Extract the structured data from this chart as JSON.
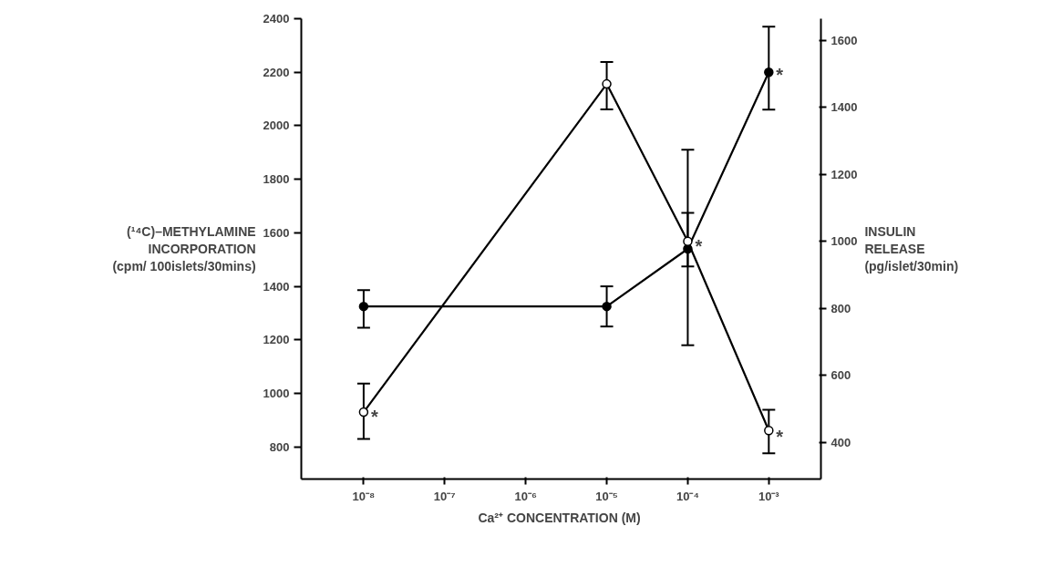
{
  "chart_data": {
    "type": "line",
    "xlabel": "Ca²⁺ CONCENTRATION  (M)",
    "ylabel": "(¹⁴C)–METHYLAMINE\nINCORPORATION\n(cpm/ 100islets/30mins)",
    "y2label": "INSULIN\nRELEASE\n(pg/islet/30min)",
    "x": [
      1e-08,
      1e-05,
      0.0001,
      0.001
    ],
    "log": "x",
    "series": [
      {
        "color": "#000000",
        "marker": "circle",
        "values": [
          1325,
          1325,
          1540,
          2200
        ],
        "errors": [
          [
            1245,
            1386
          ],
          [
            1250,
            1400
          ],
          [
            1180,
            1910
          ],
          [
            2060,
            2370
          ]
        ]
      },
      {
        "color": "#000000",
        "marker": "circle_open",
        "axis": "y2",
        "values": [
          490,
          1470,
          1000,
          435
        ],
        "errors": [
          [
            410,
            575
          ],
          [
            1394,
            1536
          ],
          [
            925,
            1085
          ],
          [
            367,
            497
          ]
        ]
      }
    ],
    "annotations": [
      {
        "text": "*",
        "x": 1e-08,
        "y": 925
      },
      {
        "text": "*",
        "x": 0.0001,
        "y": 1560
      },
      {
        "text": "*",
        "x": 0.001,
        "y": 2200
      },
      {
        "text": "*",
        "x": 0.001,
        "y": 850
      }
    ],
    "xlim": [
      1.7e-09,
      0.0044
    ],
    "xticks": [
      {
        "value": 1e-08,
        "label": "10⁻⁸"
      },
      {
        "value": 1e-07,
        "label": "10⁻⁷"
      },
      {
        "value": 1e-06,
        "label": "10⁻⁶"
      },
      {
        "value": 1e-05,
        "label": "10⁻⁵"
      },
      {
        "value": 0.0001,
        "label": "10⁻⁴"
      },
      {
        "value": 0.001,
        "label": "10⁻³"
      }
    ],
    "ylim": [
      680,
      2400
    ],
    "yticks": [
      800,
      1000,
      1200,
      1400,
      1600,
      1800,
      2000,
      2200,
      2400
    ],
    "y2lim": [
      290,
      1665
    ],
    "y2ticks": [
      400,
      600,
      800,
      1000,
      1200,
      1400,
      1600
    ],
    "grid": false,
    "line_style": "solid"
  }
}
